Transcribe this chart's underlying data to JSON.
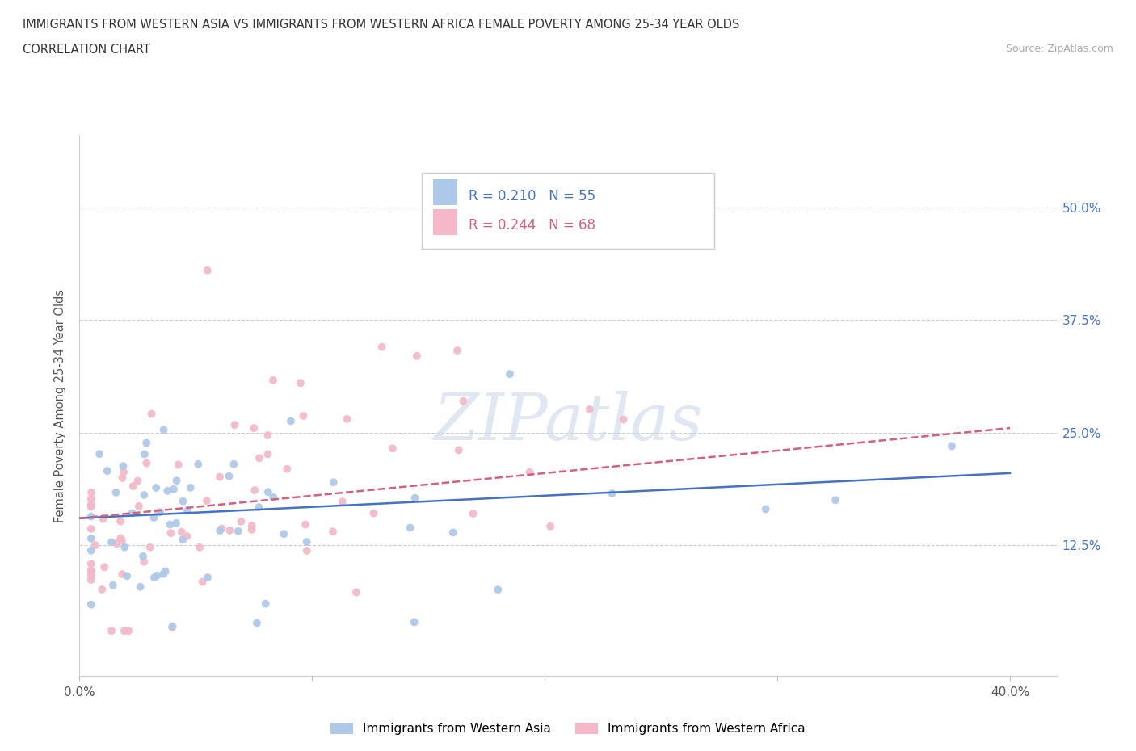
{
  "title_line1": "IMMIGRANTS FROM WESTERN ASIA VS IMMIGRANTS FROM WESTERN AFRICA FEMALE POVERTY AMONG 25-34 YEAR OLDS",
  "title_line2": "CORRELATION CHART",
  "source_text": "Source: ZipAtlas.com",
  "ylabel": "Female Poverty Among 25-34 Year Olds",
  "xlim": [
    0.0,
    0.42
  ],
  "ylim": [
    -0.02,
    0.58
  ],
  "ytick_positions": [
    0.125,
    0.25,
    0.375,
    0.5
  ],
  "ytick_labels": [
    "12.5%",
    "25.0%",
    "37.5%",
    "50.0%"
  ],
  "series1_name": "Immigrants from Western Asia",
  "series1_color": "#adc8e8",
  "series1_line_color": "#4472c4",
  "series1_R": 0.21,
  "series1_N": 55,
  "series2_name": "Immigrants from Western Africa",
  "series2_color": "#f4b8c8",
  "series2_line_color": "#d4607a",
  "series2_R": 0.244,
  "series2_N": 68,
  "watermark_text": "ZIPatlas",
  "background_color": "#ffffff",
  "grid_color": "#cccccc"
}
